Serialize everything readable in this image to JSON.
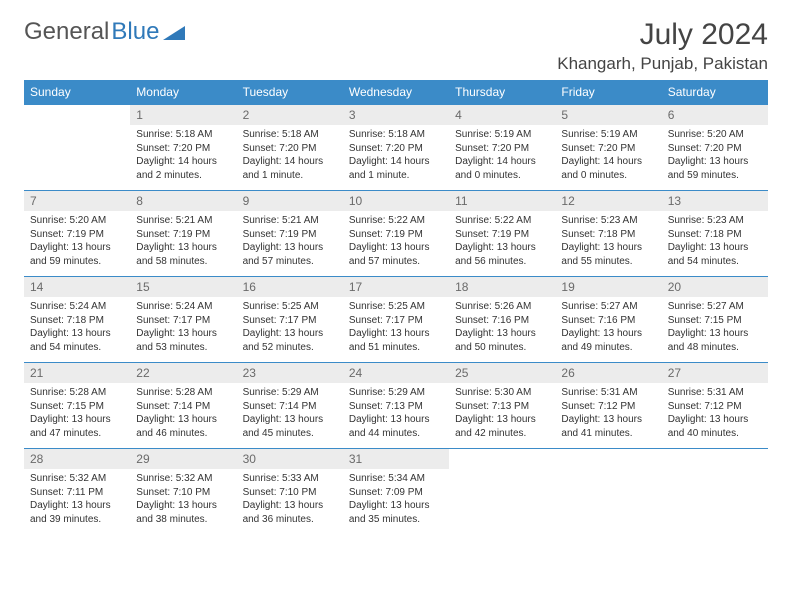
{
  "logo": {
    "text1": "General",
    "text2": "Blue"
  },
  "title": "July 2024",
  "location": "Khangarh, Punjab, Pakistan",
  "colors": {
    "header_bg": "#3b8bc8",
    "header_text": "#ffffff",
    "daynum_bg": "#ececec",
    "daynum_text": "#6a6a6a",
    "body_text": "#333333",
    "logo_gray": "#555555",
    "logo_blue": "#2f79b9",
    "rule": "#3b8bc8"
  },
  "weekdays": [
    "Sunday",
    "Monday",
    "Tuesday",
    "Wednesday",
    "Thursday",
    "Friday",
    "Saturday"
  ],
  "weeks": [
    [
      {
        "n": "",
        "sr": "",
        "ss": "",
        "d1": "",
        "d2": ""
      },
      {
        "n": "1",
        "sr": "Sunrise: 5:18 AM",
        "ss": "Sunset: 7:20 PM",
        "d1": "Daylight: 14 hours",
        "d2": "and 2 minutes."
      },
      {
        "n": "2",
        "sr": "Sunrise: 5:18 AM",
        "ss": "Sunset: 7:20 PM",
        "d1": "Daylight: 14 hours",
        "d2": "and 1 minute."
      },
      {
        "n": "3",
        "sr": "Sunrise: 5:18 AM",
        "ss": "Sunset: 7:20 PM",
        "d1": "Daylight: 14 hours",
        "d2": "and 1 minute."
      },
      {
        "n": "4",
        "sr": "Sunrise: 5:19 AM",
        "ss": "Sunset: 7:20 PM",
        "d1": "Daylight: 14 hours",
        "d2": "and 0 minutes."
      },
      {
        "n": "5",
        "sr": "Sunrise: 5:19 AM",
        "ss": "Sunset: 7:20 PM",
        "d1": "Daylight: 14 hours",
        "d2": "and 0 minutes."
      },
      {
        "n": "6",
        "sr": "Sunrise: 5:20 AM",
        "ss": "Sunset: 7:20 PM",
        "d1": "Daylight: 13 hours",
        "d2": "and 59 minutes."
      }
    ],
    [
      {
        "n": "7",
        "sr": "Sunrise: 5:20 AM",
        "ss": "Sunset: 7:19 PM",
        "d1": "Daylight: 13 hours",
        "d2": "and 59 minutes."
      },
      {
        "n": "8",
        "sr": "Sunrise: 5:21 AM",
        "ss": "Sunset: 7:19 PM",
        "d1": "Daylight: 13 hours",
        "d2": "and 58 minutes."
      },
      {
        "n": "9",
        "sr": "Sunrise: 5:21 AM",
        "ss": "Sunset: 7:19 PM",
        "d1": "Daylight: 13 hours",
        "d2": "and 57 minutes."
      },
      {
        "n": "10",
        "sr": "Sunrise: 5:22 AM",
        "ss": "Sunset: 7:19 PM",
        "d1": "Daylight: 13 hours",
        "d2": "and 57 minutes."
      },
      {
        "n": "11",
        "sr": "Sunrise: 5:22 AM",
        "ss": "Sunset: 7:19 PM",
        "d1": "Daylight: 13 hours",
        "d2": "and 56 minutes."
      },
      {
        "n": "12",
        "sr": "Sunrise: 5:23 AM",
        "ss": "Sunset: 7:18 PM",
        "d1": "Daylight: 13 hours",
        "d2": "and 55 minutes."
      },
      {
        "n": "13",
        "sr": "Sunrise: 5:23 AM",
        "ss": "Sunset: 7:18 PM",
        "d1": "Daylight: 13 hours",
        "d2": "and 54 minutes."
      }
    ],
    [
      {
        "n": "14",
        "sr": "Sunrise: 5:24 AM",
        "ss": "Sunset: 7:18 PM",
        "d1": "Daylight: 13 hours",
        "d2": "and 54 minutes."
      },
      {
        "n": "15",
        "sr": "Sunrise: 5:24 AM",
        "ss": "Sunset: 7:17 PM",
        "d1": "Daylight: 13 hours",
        "d2": "and 53 minutes."
      },
      {
        "n": "16",
        "sr": "Sunrise: 5:25 AM",
        "ss": "Sunset: 7:17 PM",
        "d1": "Daylight: 13 hours",
        "d2": "and 52 minutes."
      },
      {
        "n": "17",
        "sr": "Sunrise: 5:25 AM",
        "ss": "Sunset: 7:17 PM",
        "d1": "Daylight: 13 hours",
        "d2": "and 51 minutes."
      },
      {
        "n": "18",
        "sr": "Sunrise: 5:26 AM",
        "ss": "Sunset: 7:16 PM",
        "d1": "Daylight: 13 hours",
        "d2": "and 50 minutes."
      },
      {
        "n": "19",
        "sr": "Sunrise: 5:27 AM",
        "ss": "Sunset: 7:16 PM",
        "d1": "Daylight: 13 hours",
        "d2": "and 49 minutes."
      },
      {
        "n": "20",
        "sr": "Sunrise: 5:27 AM",
        "ss": "Sunset: 7:15 PM",
        "d1": "Daylight: 13 hours",
        "d2": "and 48 minutes."
      }
    ],
    [
      {
        "n": "21",
        "sr": "Sunrise: 5:28 AM",
        "ss": "Sunset: 7:15 PM",
        "d1": "Daylight: 13 hours",
        "d2": "and 47 minutes."
      },
      {
        "n": "22",
        "sr": "Sunrise: 5:28 AM",
        "ss": "Sunset: 7:14 PM",
        "d1": "Daylight: 13 hours",
        "d2": "and 46 minutes."
      },
      {
        "n": "23",
        "sr": "Sunrise: 5:29 AM",
        "ss": "Sunset: 7:14 PM",
        "d1": "Daylight: 13 hours",
        "d2": "and 45 minutes."
      },
      {
        "n": "24",
        "sr": "Sunrise: 5:29 AM",
        "ss": "Sunset: 7:13 PM",
        "d1": "Daylight: 13 hours",
        "d2": "and 44 minutes."
      },
      {
        "n": "25",
        "sr": "Sunrise: 5:30 AM",
        "ss": "Sunset: 7:13 PM",
        "d1": "Daylight: 13 hours",
        "d2": "and 42 minutes."
      },
      {
        "n": "26",
        "sr": "Sunrise: 5:31 AM",
        "ss": "Sunset: 7:12 PM",
        "d1": "Daylight: 13 hours",
        "d2": "and 41 minutes."
      },
      {
        "n": "27",
        "sr": "Sunrise: 5:31 AM",
        "ss": "Sunset: 7:12 PM",
        "d1": "Daylight: 13 hours",
        "d2": "and 40 minutes."
      }
    ],
    [
      {
        "n": "28",
        "sr": "Sunrise: 5:32 AM",
        "ss": "Sunset: 7:11 PM",
        "d1": "Daylight: 13 hours",
        "d2": "and 39 minutes."
      },
      {
        "n": "29",
        "sr": "Sunrise: 5:32 AM",
        "ss": "Sunset: 7:10 PM",
        "d1": "Daylight: 13 hours",
        "d2": "and 38 minutes."
      },
      {
        "n": "30",
        "sr": "Sunrise: 5:33 AM",
        "ss": "Sunset: 7:10 PM",
        "d1": "Daylight: 13 hours",
        "d2": "and 36 minutes."
      },
      {
        "n": "31",
        "sr": "Sunrise: 5:34 AM",
        "ss": "Sunset: 7:09 PM",
        "d1": "Daylight: 13 hours",
        "d2": "and 35 minutes."
      },
      {
        "n": "",
        "sr": "",
        "ss": "",
        "d1": "",
        "d2": ""
      },
      {
        "n": "",
        "sr": "",
        "ss": "",
        "d1": "",
        "d2": ""
      },
      {
        "n": "",
        "sr": "",
        "ss": "",
        "d1": "",
        "d2": ""
      }
    ]
  ]
}
